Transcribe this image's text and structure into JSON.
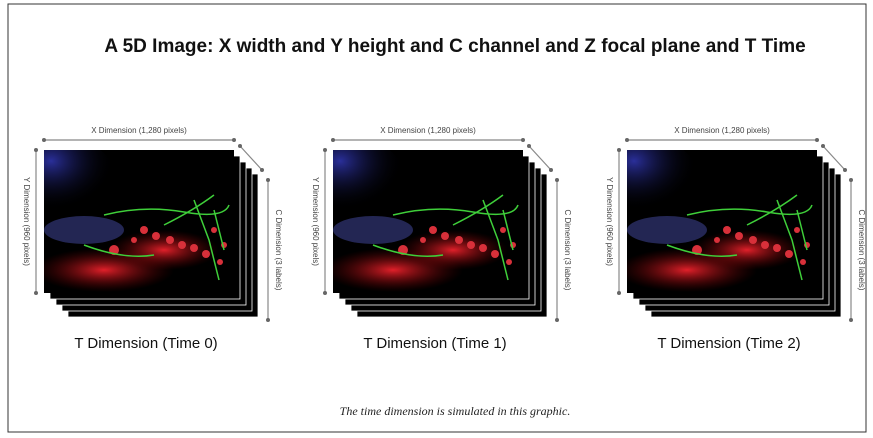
{
  "title": "A 5D Image: X width and Y height and C channel and Z focal plane and T Time",
  "panels": [
    {
      "x_label": "X Dimension (1,280 pixels)",
      "y_label": "Y Dimension (960 pixels)",
      "c_label": "C Dimension (3 labels)",
      "caption": "T Dimension (Time 0)"
    },
    {
      "x_label": "X Dimension (1,280 pixels)",
      "y_label": "Y Dimension (960 pixels)",
      "c_label": "C Dimension (3 labels)",
      "caption": "T Dimension (Time 1)"
    },
    {
      "x_label": "X Dimension (1,280 pixels)",
      "y_label": "Y Dimension (960 pixels)",
      "c_label": "C Dimension (3 labels)",
      "caption": "T Dimension (Time 2)"
    }
  ],
  "footnote": "The time dimension is simulated in this graphic."
}
